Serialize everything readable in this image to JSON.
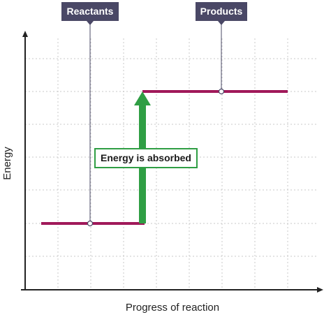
{
  "labels": {
    "reactants": "Reactants",
    "products": "Products",
    "annotation": "Energy is absorbed",
    "x_axis": "Progress of reaction",
    "y_axis": "Energy"
  },
  "colors": {
    "callout_fill": "#4a4866",
    "level_line": "#a0195a",
    "arrow": "#2f9e44",
    "annotation_border": "#2f9e44",
    "grid": "#c8c8c8",
    "axis": "#222222"
  },
  "diagram": {
    "type": "energy-level-diagram",
    "reaction": "endothermic",
    "reactant_level": "low",
    "product_level": "high",
    "arrow_direction": "up"
  }
}
